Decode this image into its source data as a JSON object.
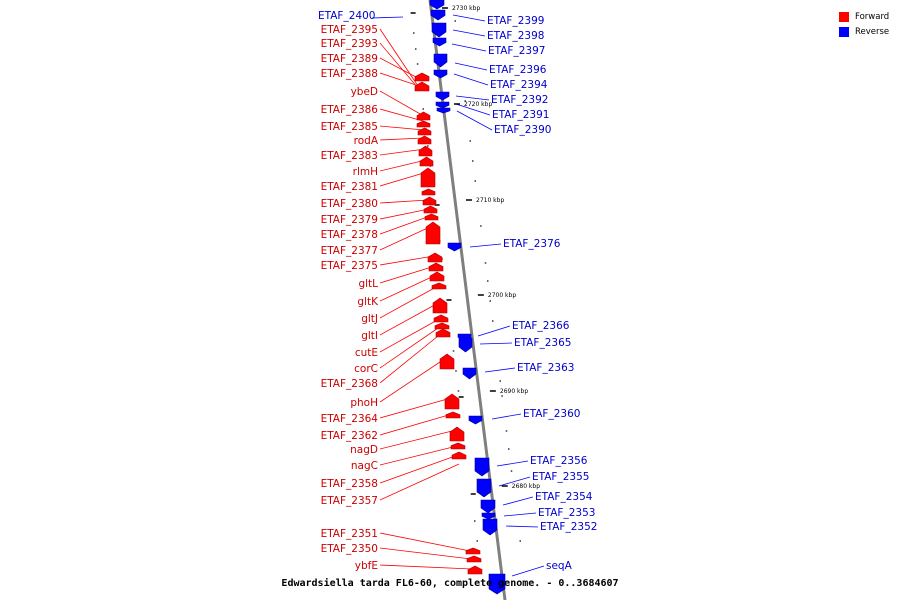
{
  "caption": "Edwardsiella tarda FL6-60, complete genome. - 0..3684607",
  "legend": {
    "forward_label": "Forward",
    "reverse_label": "Reverse",
    "forward_color": "#ff0000",
    "reverse_color": "#0000ff"
  },
  "colors": {
    "forward": "#ff0000",
    "forward_dark": "#b40000",
    "reverse": "#0000ff",
    "reverse_dark": "#0000a0",
    "axis": "#7f7f7f",
    "forward_text": "#cc0000",
    "reverse_text": "#0000cc"
  },
  "ticks": [
    "2730 kbp",
    "2720 kbp",
    "2710 kbp",
    "2700 kbp",
    "2690 kbp",
    "2680 kbp"
  ],
  "forward_genes": [
    "ETAF_2395",
    "ETAF_2393",
    "ETAF_2389",
    "ETAF_2388",
    "ybeD",
    "ETAF_2386",
    "ETAF_2385",
    "rodA",
    "ETAF_2383",
    "rlmH",
    "ETAF_2381",
    "ETAF_2380",
    "ETAF_2379",
    "ETAF_2378",
    "ETAF_2377",
    "ETAF_2375",
    "gltL",
    "gltK",
    "gltJ",
    "gltI",
    "cutE",
    "corC",
    "ETAF_2368",
    "phoH",
    "ETAF_2364",
    "ETAF_2362",
    "nagD",
    "nagC",
    "ETAF_2358",
    "ETAF_2357",
    "ETAF_2351",
    "ETAF_2350",
    "ybfE"
  ],
  "reverse_genes": [
    "ETAF_2400",
    "ETAF_2399",
    "ETAF_2398",
    "ETAF_2397",
    "ETAF_2396",
    "ETAF_2394",
    "ETAF_2392",
    "ETAF_2391",
    "ETAF_2390",
    "ETAF_2376",
    "ETAF_2366",
    "ETAF_2365",
    "ETAF_2363",
    "ETAF_2360",
    "ETAF_2356",
    "ETAF_2355",
    "ETAF_2354",
    "ETAF_2353",
    "ETAF_2352",
    "seqA"
  ]
}
